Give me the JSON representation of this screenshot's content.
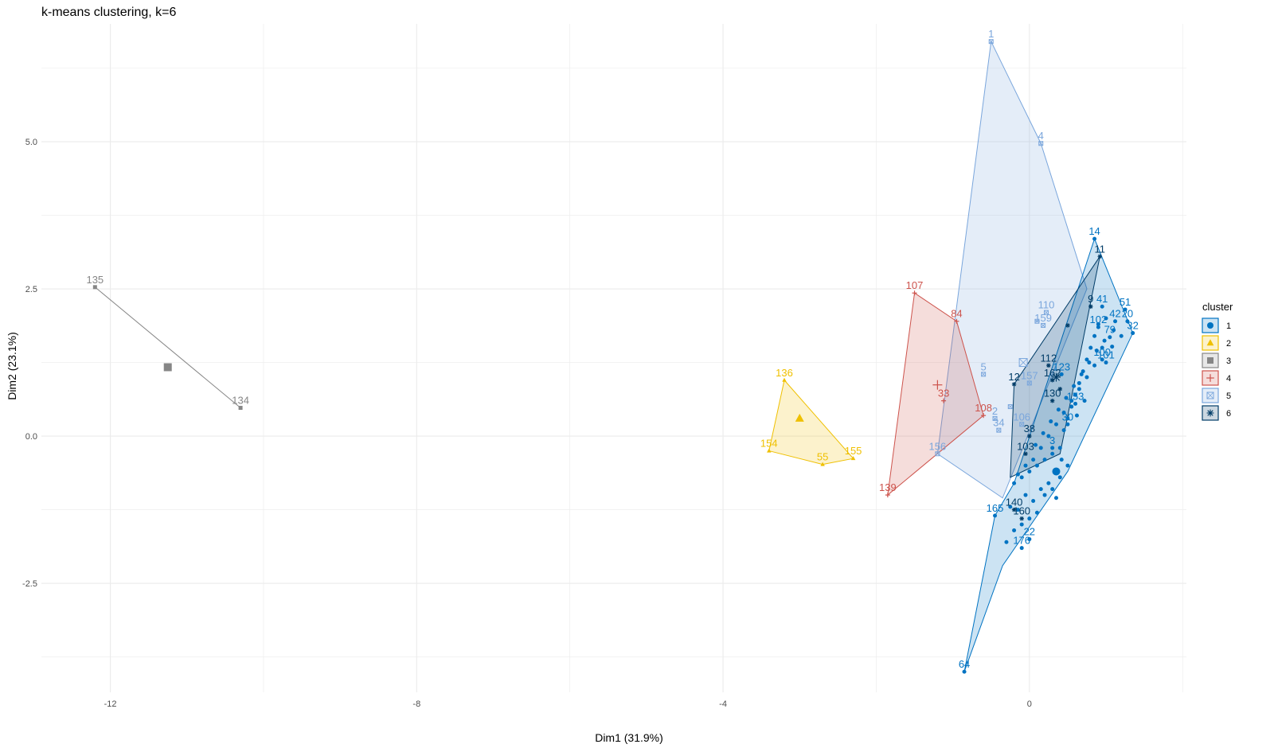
{
  "chart_data": {
    "type": "scatter",
    "title": "k-means clustering, k=6",
    "xlabel": "Dim1 (31.9%)",
    "ylabel": "Dim2 (23.1%)",
    "xlim": [
      -12.9,
      2.05
    ],
    "ylim": [
      -4.35,
      7.0
    ],
    "x_ticks": [
      {
        "value": -12,
        "label": "-12"
      },
      {
        "value": -8,
        "label": "-8"
      },
      {
        "value": -4,
        "label": "-4"
      },
      {
        "value": 0,
        "label": "0"
      }
    ],
    "y_ticks": [
      {
        "value": -2.5,
        "label": "-2.5"
      },
      {
        "value": 0,
        "label": "0.0"
      },
      {
        "value": 2.5,
        "label": "2.5"
      },
      {
        "value": 5,
        "label": "5.0"
      }
    ],
    "grid": true,
    "legend": {
      "title": "cluster",
      "position": "right",
      "entries": [
        {
          "label": "1",
          "color": "#0073C2",
          "symbol": "circle"
        },
        {
          "label": "2",
          "color": "#EFC000",
          "symbol": "triangle"
        },
        {
          "label": "3",
          "color": "#868686",
          "symbol": "square"
        },
        {
          "label": "4",
          "color": "#CD534C",
          "symbol": "plus"
        },
        {
          "label": "5",
          "color": "#7AA6DC",
          "symbol": "boxx"
        },
        {
          "label": "6",
          "color": "#003C67",
          "symbol": "star"
        }
      ]
    },
    "clusters": [
      {
        "name": "1",
        "color": "#0073C2",
        "symbol": "circle",
        "centroid": [
          0.35,
          -0.6
        ],
        "hull": [
          [
            -0.85,
            -4.0
          ],
          [
            -0.45,
            -1.35
          ],
          [
            -0.2,
            -0.8
          ],
          [
            0.85,
            3.35
          ],
          [
            1.35,
            1.75
          ],
          [
            0.5,
            -0.6
          ],
          [
            -0.35,
            -2.2
          ]
        ],
        "points": [
          {
            "label": "64",
            "x": -0.85,
            "y": -4.0
          },
          {
            "label": "14",
            "x": 0.85,
            "y": 3.35
          },
          {
            "label": "51",
            "x": 1.25,
            "y": 2.15
          },
          {
            "label": "20",
            "x": 1.28,
            "y": 1.95
          },
          {
            "label": "42",
            "x": 1.12,
            "y": 1.95
          },
          {
            "label": "32",
            "x": 1.35,
            "y": 1.75
          },
          {
            "label": "79",
            "x": 1.05,
            "y": 1.68
          },
          {
            "label": "102",
            "x": 0.9,
            "y": 1.85
          },
          {
            "label": "41",
            "x": 0.95,
            "y": 2.2
          },
          {
            "label": "165",
            "x": -0.45,
            "y": -1.35
          },
          {
            "label": "176",
            "x": -0.1,
            "y": -1.9
          },
          {
            "label": "22",
            "x": 0.0,
            "y": -1.75
          },
          {
            "label": "123",
            "x": 0.42,
            "y": 1.05
          },
          {
            "label": "153",
            "x": 0.6,
            "y": 0.55
          },
          {
            "label": "100",
            "x": 0.95,
            "y": 1.3
          },
          {
            "label": "101",
            "x": 1.0,
            "y": 1.25
          },
          {
            "label": "30",
            "x": 0.5,
            "y": 0.2
          },
          {
            "label": "3",
            "x": 0.3,
            "y": -0.2
          }
        ],
        "extra_points": [
          [
            -0.2,
            -0.8
          ],
          [
            -0.1,
            -0.7
          ],
          [
            0.0,
            -0.6
          ],
          [
            0.1,
            -0.5
          ],
          [
            0.2,
            -0.4
          ],
          [
            0.3,
            -0.3
          ],
          [
            0.15,
            -0.9
          ],
          [
            0.05,
            -1.1
          ],
          [
            -0.05,
            -1.0
          ],
          [
            0.25,
            -0.8
          ],
          [
            0.35,
            -0.6
          ],
          [
            0.4,
            -0.2
          ],
          [
            0.45,
            0.1
          ],
          [
            0.5,
            0.3
          ],
          [
            0.55,
            0.5
          ],
          [
            0.6,
            0.7
          ],
          [
            0.65,
            0.9
          ],
          [
            0.7,
            1.1
          ],
          [
            0.75,
            1.3
          ],
          [
            0.8,
            1.5
          ],
          [
            0.85,
            1.7
          ],
          [
            0.9,
            1.9
          ],
          [
            1.0,
            2.0
          ],
          [
            1.1,
            1.8
          ],
          [
            1.2,
            1.7
          ],
          [
            0.95,
            1.5
          ],
          [
            0.85,
            1.2
          ],
          [
            0.75,
            1.0
          ],
          [
            0.65,
            0.8
          ],
          [
            0.55,
            0.6
          ],
          [
            0.45,
            0.4
          ],
          [
            0.35,
            0.2
          ],
          [
            0.25,
            0.0
          ],
          [
            0.15,
            -0.2
          ],
          [
            0.05,
            -0.4
          ],
          [
            -0.05,
            -0.5
          ],
          [
            -0.15,
            -0.65
          ],
          [
            0.1,
            -1.3
          ],
          [
            0.0,
            -1.4
          ],
          [
            -0.1,
            -1.5
          ],
          [
            -0.2,
            -1.6
          ],
          [
            -0.25,
            -1.2
          ],
          [
            0.2,
            -1.0
          ],
          [
            0.3,
            -0.9
          ],
          [
            0.4,
            -0.7
          ],
          [
            0.5,
            -0.5
          ],
          [
            0.35,
            -1.05
          ],
          [
            -0.3,
            -1.8
          ],
          [
            -0.15,
            -1.25
          ],
          [
            0.08,
            -0.15
          ],
          [
            0.18,
            0.05
          ],
          [
            0.28,
            0.25
          ],
          [
            0.38,
            0.45
          ],
          [
            0.48,
            0.65
          ],
          [
            0.58,
            0.85
          ],
          [
            0.68,
            1.05
          ],
          [
            0.78,
            1.25
          ],
          [
            0.88,
            1.45
          ],
          [
            0.98,
            1.62
          ],
          [
            1.08,
            1.52
          ],
          [
            0.72,
            0.6
          ],
          [
            0.62,
            0.35
          ],
          [
            0.42,
            -0.4
          ]
        ]
      },
      {
        "name": "2",
        "color": "#EFC000",
        "symbol": "triangle",
        "centroid": [
          -3.0,
          0.3
        ],
        "hull": [
          [
            -3.2,
            0.95
          ],
          [
            -3.4,
            -0.25
          ],
          [
            -2.7,
            -0.48
          ],
          [
            -2.3,
            -0.38
          ]
        ],
        "points": [
          {
            "label": "136",
            "x": -3.2,
            "y": 0.95
          },
          {
            "label": "154",
            "x": -3.4,
            "y": -0.25
          },
          {
            "label": "55",
            "x": -2.7,
            "y": -0.48
          },
          {
            "label": "155",
            "x": -2.3,
            "y": -0.38
          }
        ],
        "extra_points": []
      },
      {
        "name": "3",
        "color": "#868686",
        "symbol": "square",
        "centroid": [
          -11.25,
          1.17
        ],
        "hull": [
          [
            -12.2,
            2.53
          ],
          [
            -10.3,
            0.48
          ]
        ],
        "points": [
          {
            "label": "135",
            "x": -12.2,
            "y": 2.53
          },
          {
            "label": "134",
            "x": -10.3,
            "y": 0.48
          }
        ],
        "extra_points": []
      },
      {
        "name": "4",
        "color": "#CD534C",
        "symbol": "plus",
        "centroid": [
          -1.2,
          0.87
        ],
        "hull": [
          [
            -1.5,
            2.43
          ],
          [
            -0.95,
            1.95
          ],
          [
            -0.6,
            0.35
          ],
          [
            -1.85,
            -1.0
          ]
        ],
        "points": [
          {
            "label": "107",
            "x": -1.5,
            "y": 2.43
          },
          {
            "label": "84",
            "x": -0.95,
            "y": 1.95
          },
          {
            "label": "33",
            "x": -1.12,
            "y": 0.6
          },
          {
            "label": "108",
            "x": -0.6,
            "y": 0.35
          },
          {
            "label": "139",
            "x": -1.85,
            "y": -1.0
          }
        ],
        "extra_points": []
      },
      {
        "name": "5",
        "color": "#7AA6DC",
        "symbol": "boxx",
        "centroid": [
          -0.08,
          1.25
        ],
        "hull": [
          [
            -0.5,
            6.7
          ],
          [
            0.15,
            4.97
          ],
          [
            0.75,
            2.5
          ],
          [
            -0.35,
            -1.05
          ],
          [
            -1.2,
            -0.3
          ]
        ],
        "points": [
          {
            "label": "1",
            "x": -0.5,
            "y": 6.7
          },
          {
            "label": "4",
            "x": 0.15,
            "y": 4.97
          },
          {
            "label": "110",
            "x": 0.22,
            "y": 2.1
          },
          {
            "label": "159",
            "x": 0.18,
            "y": 1.88
          },
          {
            "label": "5",
            "x": -0.6,
            "y": 1.05
          },
          {
            "label": "157",
            "x": 0.0,
            "y": 0.9
          },
          {
            "label": "2",
            "x": -0.45,
            "y": 0.3
          },
          {
            "label": "34",
            "x": -0.4,
            "y": 0.1
          },
          {
            "label": "156",
            "x": -1.2,
            "y": -0.3
          },
          {
            "label": "106",
            "x": -0.1,
            "y": 0.2
          }
        ],
        "extra_points": [
          [
            0.1,
            1.95
          ],
          [
            -0.25,
            0.5
          ]
        ]
      },
      {
        "name": "6",
        "color": "#003C67",
        "symbol": "star",
        "centroid": [
          0.35,
          1.0
        ],
        "hull": [
          [
            -0.2,
            0.88
          ],
          [
            0.92,
            3.05
          ],
          [
            0.4,
            -0.3
          ],
          [
            -0.25,
            -0.7
          ]
        ],
        "points": [
          {
            "label": "11",
            "x": 0.92,
            "y": 3.05
          },
          {
            "label": "9",
            "x": 0.8,
            "y": 2.2
          },
          {
            "label": "112",
            "x": 0.25,
            "y": 1.2
          },
          {
            "label": "12",
            "x": -0.2,
            "y": 0.88
          },
          {
            "label": "162",
            "x": 0.3,
            "y": 0.95
          },
          {
            "label": "130",
            "x": 0.3,
            "y": 0.6
          },
          {
            "label": "38",
            "x": 0.0,
            "y": 0.0
          },
          {
            "label": "103",
            "x": -0.05,
            "y": -0.3
          },
          {
            "label": "140",
            "x": -0.2,
            "y": -1.25
          },
          {
            "label": "160",
            "x": -0.1,
            "y": -1.4
          }
        ],
        "extra_points": [
          [
            0.5,
            1.88
          ],
          [
            0.4,
            0.8
          ]
        ]
      }
    ]
  }
}
